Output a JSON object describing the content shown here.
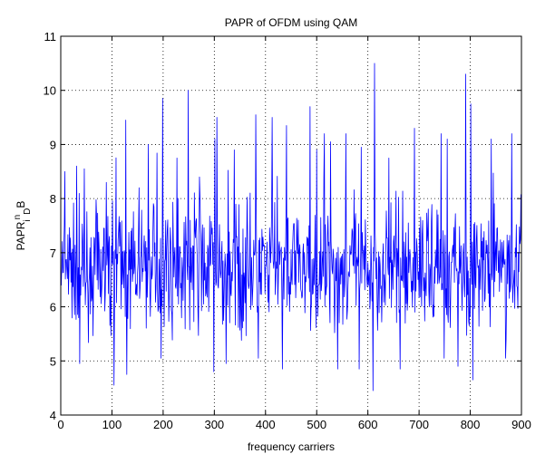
{
  "chart_data": {
    "type": "line",
    "title": "PAPR of OFDM using QAM",
    "xlabel": "frequency carriers",
    "ylabel": "PAPR",
    "ylabel_sub1": "i",
    "ylabel_sup": "n",
    "ylabel_sub2": "D",
    "ylabel_end": "B",
    "xlim": [
      0,
      900
    ],
    "ylim": [
      4,
      11
    ],
    "xticks": [
      0,
      100,
      200,
      300,
      400,
      500,
      600,
      700,
      800,
      900
    ],
    "yticks": [
      4,
      5,
      6,
      7,
      8,
      9,
      10,
      11
    ],
    "grid": true,
    "series": [
      {
        "color": "#0000ff",
        "n_points": 900,
        "baseline": 6.7,
        "peaks": [
          {
            "x": 7,
            "y": 8.5
          },
          {
            "x": 30,
            "y": 8.6
          },
          {
            "x": 45,
            "y": 8.55
          },
          {
            "x": 88,
            "y": 8.3
          },
          {
            "x": 126,
            "y": 9.45
          },
          {
            "x": 152,
            "y": 8.2
          },
          {
            "x": 170,
            "y": 9.0
          },
          {
            "x": 198,
            "y": 9.85
          },
          {
            "x": 226,
            "y": 8.75
          },
          {
            "x": 248,
            "y": 10.0
          },
          {
            "x": 270,
            "y": 8.4
          },
          {
            "x": 300,
            "y": 9.1
          },
          {
            "x": 304,
            "y": 9.5
          },
          {
            "x": 338,
            "y": 8.9
          },
          {
            "x": 380,
            "y": 9.55
          },
          {
            "x": 412,
            "y": 9.5
          },
          {
            "x": 440,
            "y": 9.35
          },
          {
            "x": 486,
            "y": 9.7
          },
          {
            "x": 514,
            "y": 9.2
          },
          {
            "x": 526,
            "y": 9.05
          },
          {
            "x": 556,
            "y": 9.2
          },
          {
            "x": 586,
            "y": 8.95
          },
          {
            "x": 612,
            "y": 10.5
          },
          {
            "x": 640,
            "y": 8.75
          },
          {
            "x": 690,
            "y": 9.3
          },
          {
            "x": 742,
            "y": 9.2
          },
          {
            "x": 754,
            "y": 9.1
          },
          {
            "x": 790,
            "y": 10.3
          },
          {
            "x": 800,
            "y": 9.75
          },
          {
            "x": 840,
            "y": 9.1
          },
          {
            "x": 880,
            "y": 9.2
          }
        ],
        "troughs": [
          {
            "x": 36,
            "y": 4.95
          },
          {
            "x": 103,
            "y": 4.55
          },
          {
            "x": 128,
            "y": 4.75
          },
          {
            "x": 195,
            "y": 5.05
          },
          {
            "x": 298,
            "y": 4.8
          },
          {
            "x": 322,
            "y": 4.95
          },
          {
            "x": 385,
            "y": 5.05
          },
          {
            "x": 432,
            "y": 4.85
          },
          {
            "x": 540,
            "y": 4.85
          },
          {
            "x": 582,
            "y": 4.85
          },
          {
            "x": 609,
            "y": 4.45
          },
          {
            "x": 662,
            "y": 4.85
          },
          {
            "x": 748,
            "y": 5.05
          },
          {
            "x": 775,
            "y": 4.9
          },
          {
            "x": 804,
            "y": 4.65
          },
          {
            "x": 868,
            "y": 5.05
          }
        ]
      }
    ]
  }
}
